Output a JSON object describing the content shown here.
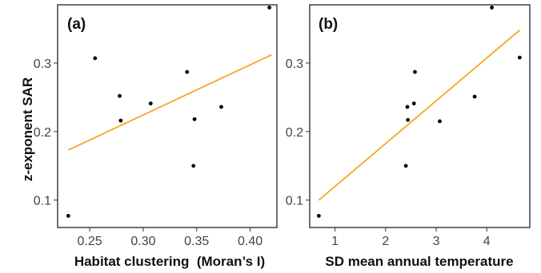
{
  "figure": {
    "ylabel": "z-exponent SAR"
  },
  "chart_data": [
    {
      "type": "scatter",
      "panel_label": "(a)",
      "xlabel": "Habitat clustering  (Moran’s I)",
      "ylabel": "z-exponent SAR",
      "xlim": [
        0.22,
        0.425
      ],
      "ylim": [
        0.06,
        0.385
      ],
      "xticks": [
        0.25,
        0.3,
        0.35,
        0.4
      ],
      "xtick_labels": [
        "0.25",
        "0.30",
        "0.35",
        "0.40"
      ],
      "yticks": [
        0.1,
        0.2,
        0.3
      ],
      "ytick_labels": [
        "0.1",
        "0.2",
        "0.3"
      ],
      "points": [
        {
          "x": 0.23,
          "y": 0.077
        },
        {
          "x": 0.255,
          "y": 0.307
        },
        {
          "x": 0.278,
          "y": 0.252
        },
        {
          "x": 0.279,
          "y": 0.216
        },
        {
          "x": 0.307,
          "y": 0.241
        },
        {
          "x": 0.341,
          "y": 0.287
        },
        {
          "x": 0.347,
          "y": 0.15
        },
        {
          "x": 0.348,
          "y": 0.218
        },
        {
          "x": 0.373,
          "y": 0.236
        },
        {
          "x": 0.418,
          "y": 0.381
        }
      ],
      "fit_line": {
        "x": [
          0.23,
          0.42
        ],
        "y": [
          0.173,
          0.312
        ],
        "color": "#F5A623"
      },
      "grid": false
    },
    {
      "type": "scatter",
      "panel_label": "(b)",
      "xlabel": "SD mean annual temperature",
      "ylabel": "z-exponent SAR",
      "xlim": [
        0.5,
        4.85
      ],
      "ylim": [
        0.06,
        0.385
      ],
      "xticks": [
        1,
        2,
        3,
        4
      ],
      "xtick_labels": [
        "1",
        "2",
        "3",
        "4"
      ],
      "yticks": [
        0.1,
        0.2,
        0.3
      ],
      "ytick_labels": [
        "0.1",
        "0.2",
        "0.3"
      ],
      "points": [
        {
          "x": 0.68,
          "y": 0.077
        },
        {
          "x": 2.4,
          "y": 0.15
        },
        {
          "x": 2.43,
          "y": 0.236
        },
        {
          "x": 2.44,
          "y": 0.217
        },
        {
          "x": 2.56,
          "y": 0.241
        },
        {
          "x": 2.58,
          "y": 0.287
        },
        {
          "x": 3.07,
          "y": 0.215
        },
        {
          "x": 3.76,
          "y": 0.251
        },
        {
          "x": 4.1,
          "y": 0.381
        },
        {
          "x": 4.65,
          "y": 0.308
        }
      ],
      "fit_line": {
        "x": [
          0.68,
          4.65
        ],
        "y": [
          0.1,
          0.348
        ],
        "color": "#F5A623"
      },
      "grid": false
    }
  ]
}
